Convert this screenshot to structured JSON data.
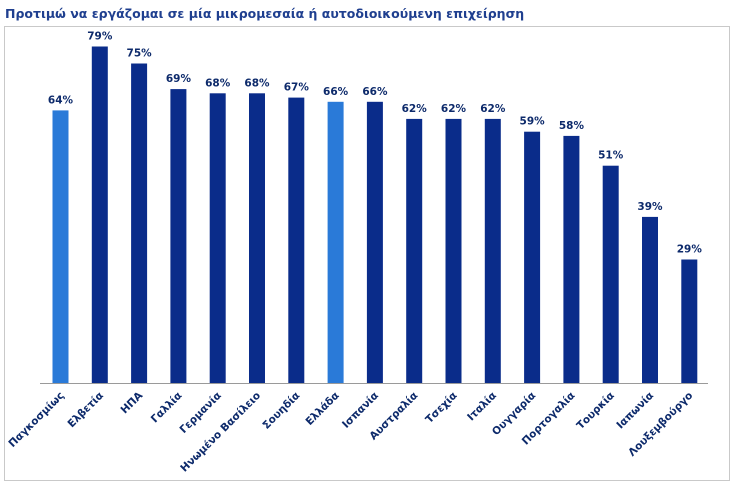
{
  "chart_data": {
    "type": "bar",
    "title": "Προτιμώ να εργάζομαι σε μία μικρομεσαία ή αυτοδιοικούμενη επιχείρηση",
    "categories": [
      "Παγκοσμίως",
      "Ελβετία",
      "ΗΠΑ",
      "Γαλλία",
      "Γερμανία",
      "Ηνωμένο Βασίλειο",
      "Σουηδία",
      "Ελλάδα",
      "Ισπανία",
      "Αυστραλία",
      "Τσεχία",
      "Ιταλία",
      "Ουγγαρία",
      "Πορτογαλία",
      "Τουρκία",
      "Ιαπωνία",
      "Λουξεμβούργο"
    ],
    "values": [
      64,
      79,
      75,
      69,
      68,
      68,
      67,
      66,
      66,
      62,
      62,
      62,
      59,
      58,
      51,
      39,
      29
    ],
    "value_labels": [
      "64%",
      "79%",
      "75%",
      "69%",
      "68%",
      "68%",
      "67%",
      "66%",
      "66%",
      "62%",
      "62%",
      "62%",
      "59%",
      "58%",
      "51%",
      "39%",
      "29%"
    ],
    "highlighted": [
      "Παγκοσμίως",
      "Ελλάδα"
    ],
    "ylim": [
      0,
      80
    ],
    "grid": false,
    "legend": "none",
    "colors": {
      "bar": "#0a2c8a",
      "highlight": "#2a7ad8",
      "label": "#0d2a6b"
    }
  }
}
